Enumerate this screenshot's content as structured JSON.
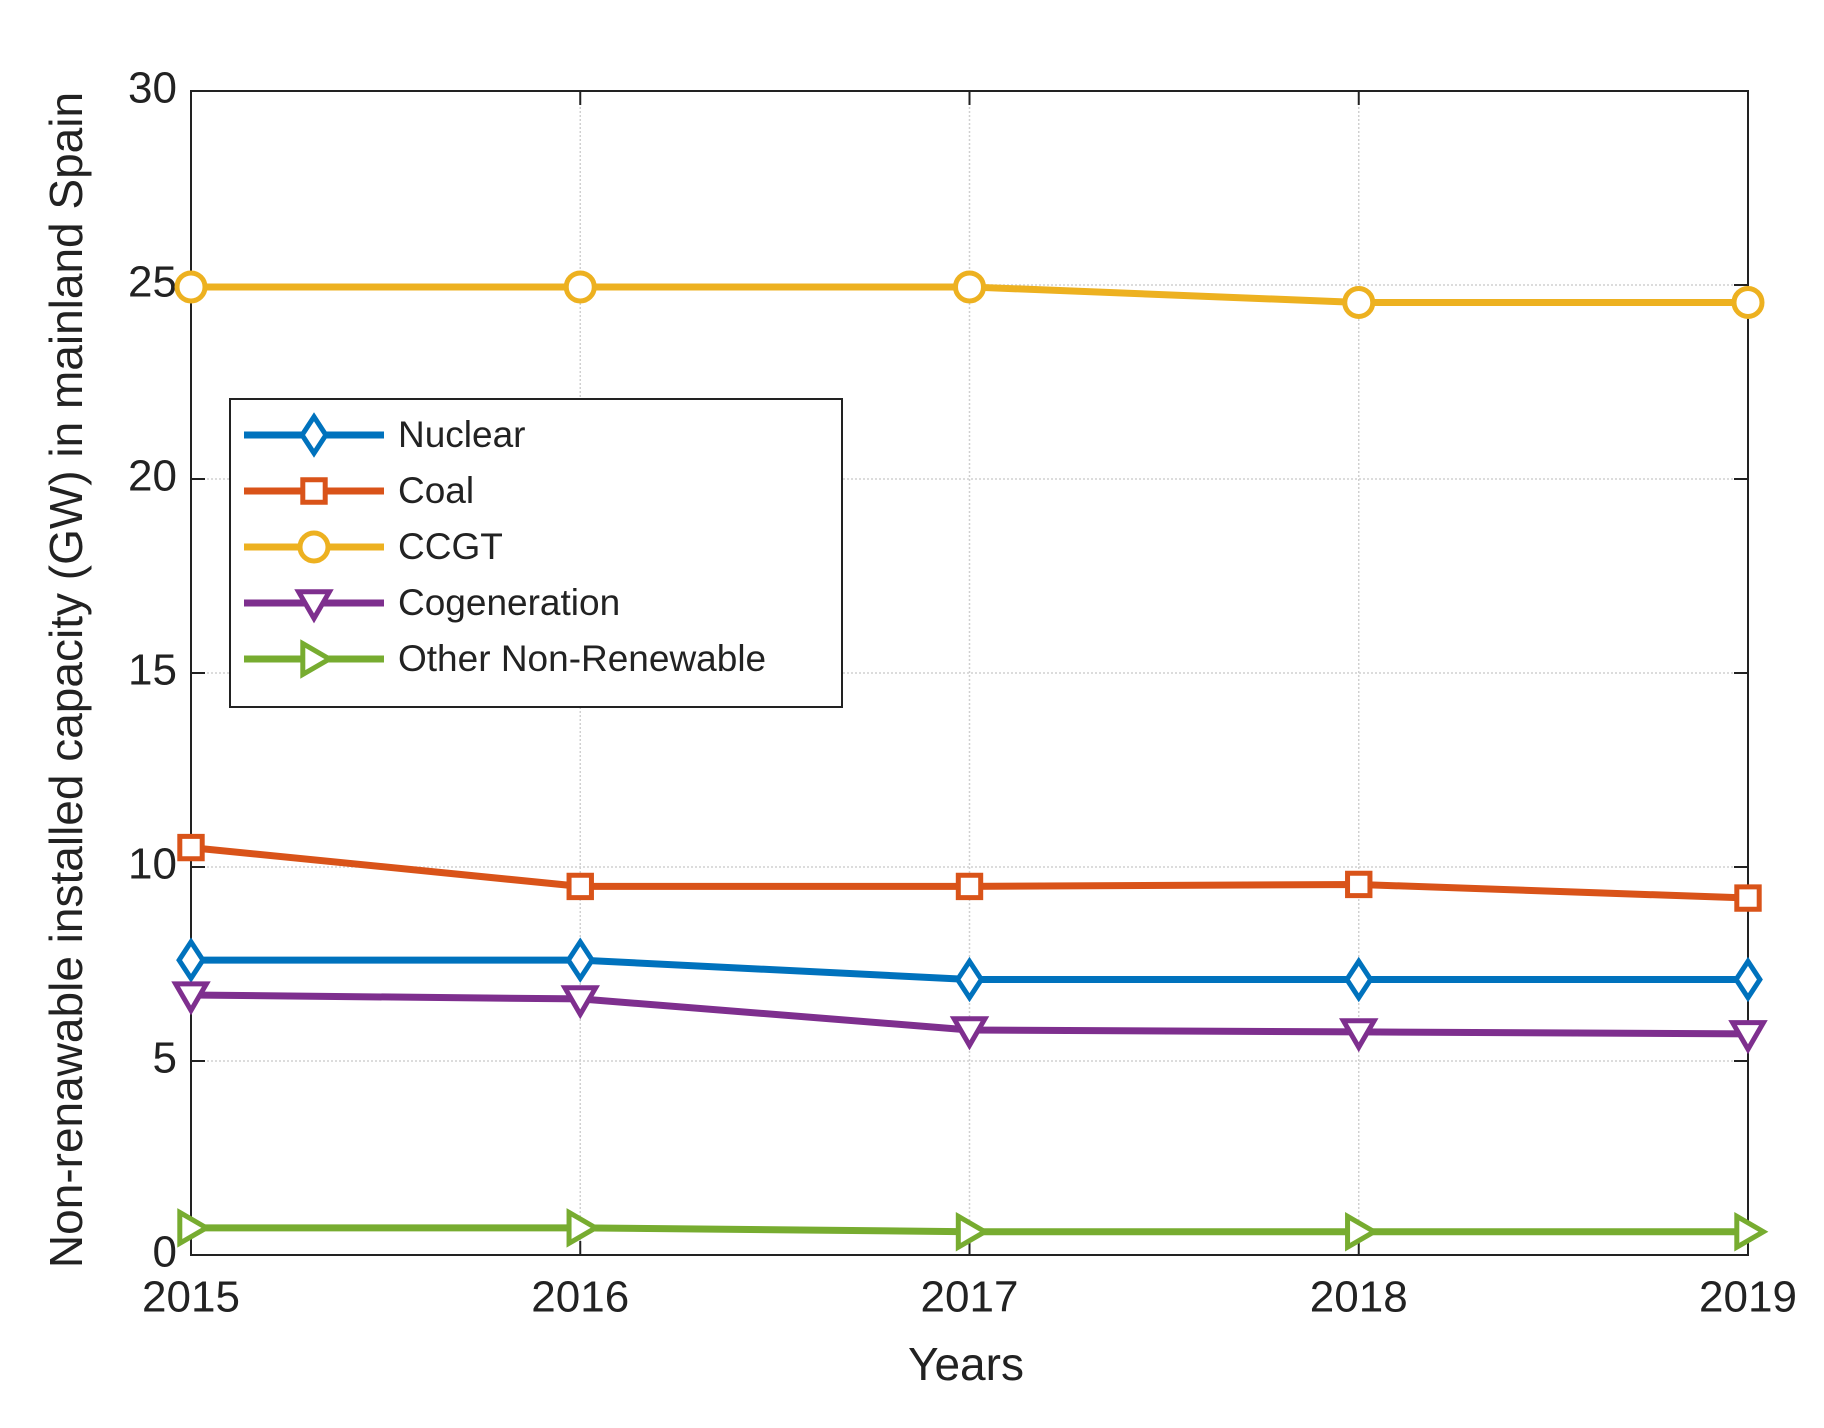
{
  "chart_data": {
    "type": "line",
    "xlabel": "Years",
    "ylabel": "Non-renawable installed capacity (GW) in mainland Spain",
    "x": [
      2015,
      2016,
      2017,
      2018,
      2019
    ],
    "xlim": [
      2015,
      2019
    ],
    "xticks": [
      2015,
      2016,
      2017,
      2018,
      2019
    ],
    "ylim": [
      0,
      30
    ],
    "yticks": [
      0,
      5,
      10,
      15,
      20,
      25,
      30
    ],
    "grid": true,
    "legend": "west",
    "series": [
      {
        "name": "Nuclear",
        "color": "#0072bd",
        "marker": "diamond",
        "values": [
          7.6,
          7.6,
          7.1,
          7.1,
          7.1
        ]
      },
      {
        "name": "Coal",
        "color": "#d95319",
        "marker": "square",
        "values": [
          10.5,
          9.5,
          9.5,
          9.55,
          9.2
        ]
      },
      {
        "name": "CCGT",
        "color": "#edb120",
        "marker": "circle",
        "values": [
          24.95,
          24.95,
          24.95,
          24.55,
          24.55
        ]
      },
      {
        "name": "Cogeneration",
        "color": "#7e2f8e",
        "marker": "triangle-down",
        "values": [
          6.7,
          6.6,
          5.8,
          5.75,
          5.7
        ]
      },
      {
        "name": "Other Non-Renewable",
        "color": "#77ac30",
        "marker": "triangle-right",
        "values": [
          0.7,
          0.7,
          0.6,
          0.6,
          0.6
        ]
      }
    ]
  }
}
